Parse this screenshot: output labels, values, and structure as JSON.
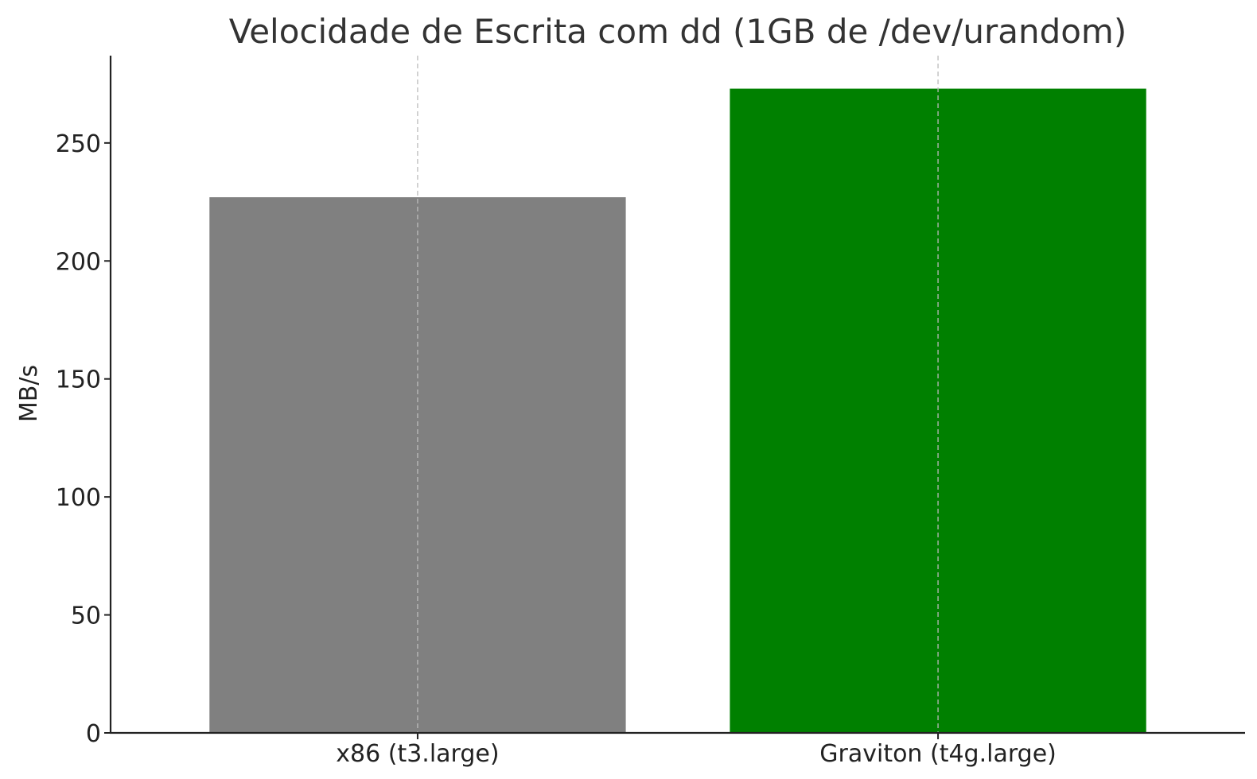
{
  "chart_data": {
    "type": "bar",
    "title": "Velocidade de Escrita com dd (1GB de /dev/urandom)",
    "xlabel": "",
    "ylabel": "MB/s",
    "categories": [
      "x86 (t3.large)",
      "Graviton (t4g.large)"
    ],
    "values": [
      227,
      273
    ],
    "colors": [
      "#808080",
      "#008000"
    ],
    "ylim": [
      0,
      287
    ],
    "yticks": [
      0,
      50,
      100,
      150,
      200,
      250
    ],
    "grid": "x-dashed",
    "legend": "none"
  }
}
